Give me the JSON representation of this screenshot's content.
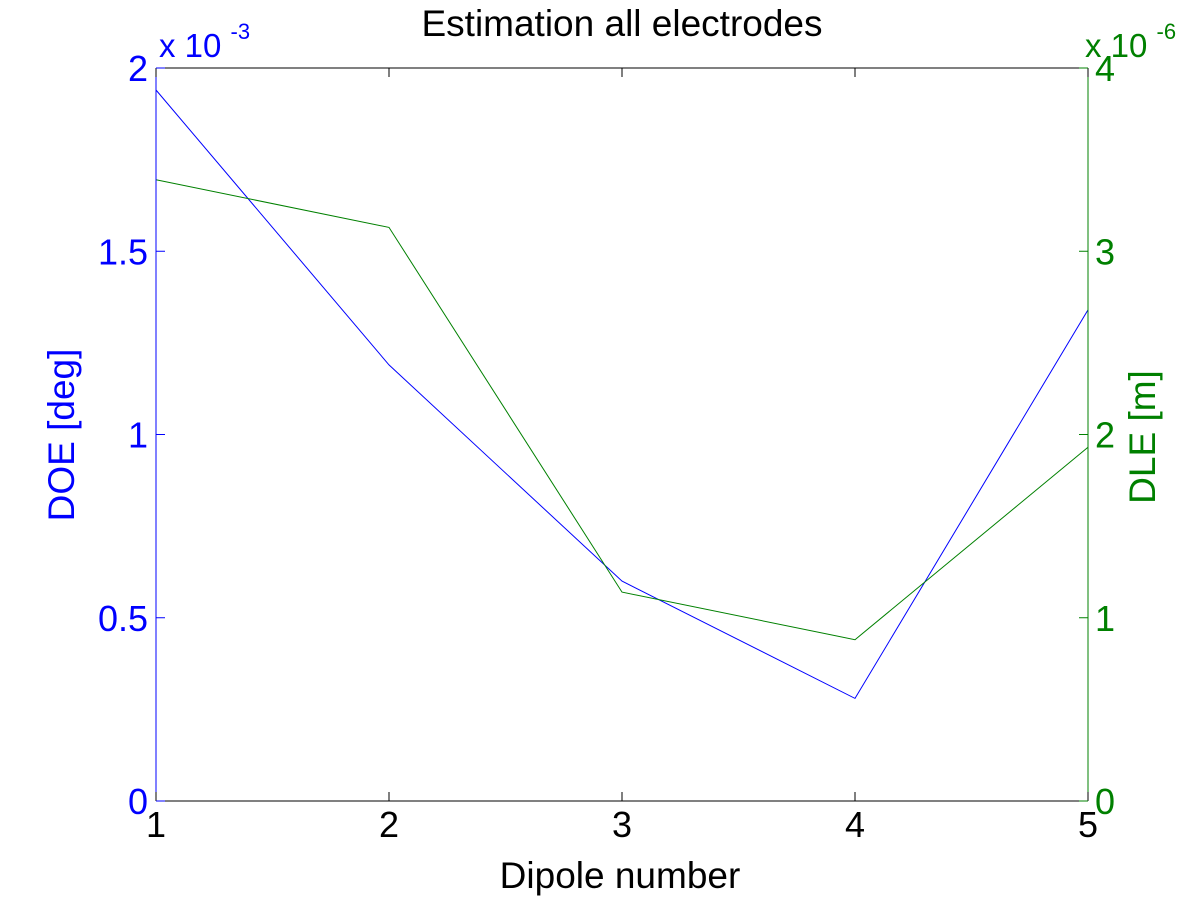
{
  "chart_data": {
    "type": "line",
    "title": "Estimation all electrodes",
    "xlabel": "Dipole number",
    "ylabel_left": "DOE [deg]",
    "ylabel_right": "DLE [m]",
    "x": [
      1,
      2,
      3,
      4,
      5
    ],
    "xlim": [
      1,
      5
    ],
    "x_ticks": [
      "1",
      "2",
      "3",
      "4",
      "5"
    ],
    "left_axis": {
      "ylim": [
        0,
        2
      ],
      "ticks": [
        "0",
        "0.5",
        "1",
        "1.5",
        "2"
      ],
      "tick_values": [
        0,
        0.5,
        1,
        1.5,
        2
      ],
      "multiplier_base": "x 10",
      "multiplier_exp": "-3",
      "color": "#0000ff"
    },
    "right_axis": {
      "ylim": [
        0,
        4
      ],
      "ticks": [
        "0",
        "1",
        "2",
        "3",
        "4"
      ],
      "tick_values": [
        0,
        1,
        2,
        3,
        4
      ],
      "multiplier_base": "x 10",
      "multiplier_exp": "-6",
      "color": "#008000"
    },
    "series": [
      {
        "axis": "left",
        "color": "#0000ff",
        "values": [
          1.94,
          1.19,
          0.6,
          0.28,
          1.34
        ]
      },
      {
        "axis": "right",
        "color": "#008000",
        "values": [
          3.39,
          3.13,
          1.14,
          0.88,
          1.93
        ]
      }
    ],
    "grid": false,
    "legend": "none"
  }
}
